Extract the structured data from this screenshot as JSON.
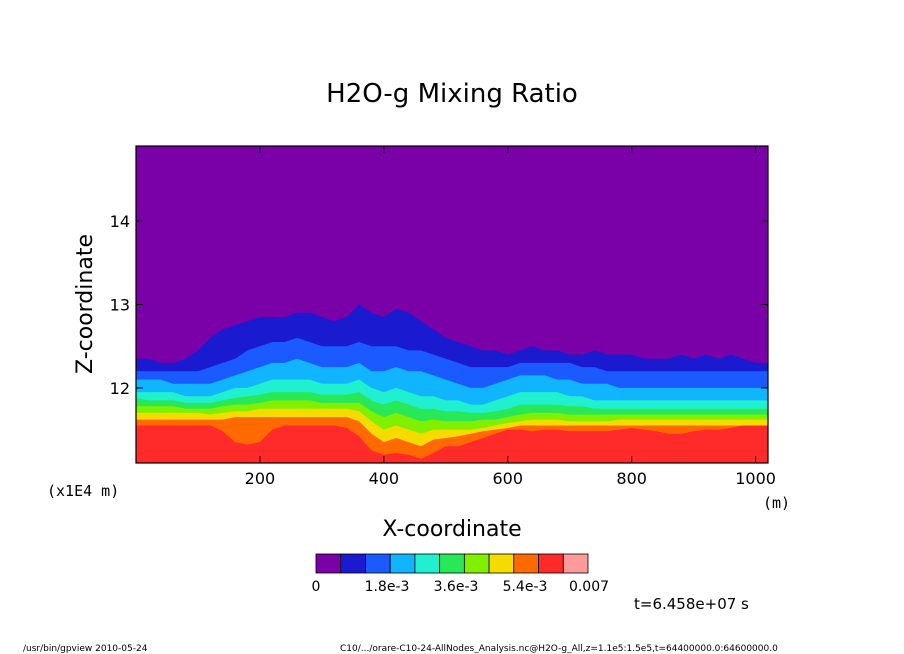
{
  "chart_data": {
    "type": "heatmap",
    "title": "H2O-g Mixing Ratio",
    "xlabel": "X-coordinate",
    "ylabel": "Z-coordinate",
    "x_unit_label": "(m)",
    "y_scale_label": "(x1E4 m)",
    "xlim": [
      0,
      1020
    ],
    "ylim": [
      11.1,
      14.9
    ],
    "x_ticks": [
      200,
      400,
      600,
      800,
      1000
    ],
    "y_ticks": [
      12,
      13,
      14
    ],
    "colorbar": {
      "colors": [
        "#7a00a8",
        "#1a1ad0",
        "#1a5aff",
        "#10b4ff",
        "#20f0d0",
        "#28e858",
        "#80f000",
        "#f4dc00",
        "#ff6a00",
        "#ff2a2a",
        "#ff9a9a"
      ],
      "tick_labels": [
        "0",
        "1.8e-3",
        "3.6e-3",
        "5.4e-3",
        "0.007"
      ]
    },
    "contour_profiles": {
      "x": [
        0,
        20,
        40,
        60,
        80,
        100,
        120,
        140,
        160,
        180,
        200,
        220,
        240,
        260,
        280,
        300,
        320,
        340,
        360,
        380,
        400,
        420,
        440,
        460,
        480,
        500,
        520,
        540,
        560,
        580,
        600,
        620,
        640,
        660,
        680,
        700,
        720,
        740,
        760,
        780,
        800,
        820,
        840,
        860,
        880,
        900,
        920,
        940,
        960,
        980,
        1000,
        1020
      ],
      "level_tops": [
        [
          12.35,
          12.35,
          12.3,
          12.3,
          12.35,
          12.45,
          12.6,
          12.7,
          12.75,
          12.8,
          12.85,
          12.85,
          12.85,
          12.9,
          12.9,
          12.85,
          12.8,
          12.85,
          13.0,
          12.9,
          12.85,
          12.95,
          12.9,
          12.8,
          12.7,
          12.6,
          12.55,
          12.5,
          12.45,
          12.45,
          12.4,
          12.45,
          12.5,
          12.45,
          12.45,
          12.4,
          12.4,
          12.45,
          12.4,
          12.4,
          12.4,
          12.35,
          12.35,
          12.35,
          12.4,
          12.35,
          12.4,
          12.35,
          12.4,
          12.35,
          12.3,
          12.3
        ],
        [
          12.2,
          12.2,
          12.2,
          12.2,
          12.2,
          12.2,
          12.25,
          12.3,
          12.35,
          12.45,
          12.5,
          12.55,
          12.55,
          12.6,
          12.55,
          12.5,
          12.5,
          12.5,
          12.55,
          12.5,
          12.5,
          12.5,
          12.45,
          12.45,
          12.4,
          12.35,
          12.3,
          12.25,
          12.25,
          12.25,
          12.25,
          12.3,
          12.3,
          12.3,
          12.3,
          12.3,
          12.25,
          12.25,
          12.2,
          12.2,
          12.2,
          12.2,
          12.2,
          12.2,
          12.2,
          12.2,
          12.2,
          12.2,
          12.2,
          12.2,
          12.2,
          12.2
        ],
        [
          12.1,
          12.1,
          12.1,
          12.05,
          12.05,
          12.05,
          12.05,
          12.1,
          12.15,
          12.2,
          12.25,
          12.3,
          12.3,
          12.35,
          12.3,
          12.25,
          12.25,
          12.25,
          12.3,
          12.2,
          12.2,
          12.25,
          12.2,
          12.2,
          12.15,
          12.1,
          12.05,
          12.0,
          12.0,
          12.05,
          12.1,
          12.15,
          12.15,
          12.15,
          12.1,
          12.1,
          12.05,
          12.05,
          12.05,
          12.0,
          12.0,
          12.0,
          12.0,
          12.0,
          12.0,
          12.0,
          12.0,
          12.0,
          12.0,
          12.0,
          12.0,
          12.0
        ],
        [
          11.95,
          11.95,
          11.95,
          11.95,
          11.9,
          11.9,
          11.9,
          11.95,
          12.0,
          12.0,
          12.05,
          12.1,
          12.1,
          12.1,
          12.1,
          12.05,
          12.05,
          12.05,
          12.1,
          12.0,
          11.95,
          12.0,
          11.95,
          11.9,
          11.9,
          11.85,
          11.85,
          11.8,
          11.8,
          11.85,
          11.9,
          11.95,
          11.95,
          11.95,
          11.95,
          11.9,
          11.9,
          11.85,
          11.85,
          11.85,
          11.85,
          11.85,
          11.85,
          11.85,
          11.85,
          11.85,
          11.85,
          11.85,
          11.85,
          11.85,
          11.85,
          11.85
        ],
        [
          11.88,
          11.85,
          11.85,
          11.85,
          11.82,
          11.82,
          11.82,
          11.85,
          11.88,
          11.9,
          11.92,
          11.95,
          11.95,
          11.95,
          11.95,
          11.92,
          11.92,
          11.92,
          11.95,
          11.85,
          11.8,
          11.85,
          11.8,
          11.75,
          11.75,
          11.72,
          11.72,
          11.7,
          11.7,
          11.72,
          11.75,
          11.8,
          11.8,
          11.8,
          11.8,
          11.78,
          11.78,
          11.75,
          11.75,
          11.75,
          11.75,
          11.75,
          11.75,
          11.75,
          11.75,
          11.75,
          11.75,
          11.75,
          11.75,
          11.75,
          11.75,
          11.75
        ],
        [
          11.78,
          11.78,
          11.78,
          11.78,
          11.75,
          11.75,
          11.75,
          11.78,
          11.8,
          11.8,
          11.82,
          11.85,
          11.85,
          11.85,
          11.85,
          11.82,
          11.82,
          11.82,
          11.82,
          11.72,
          11.65,
          11.7,
          11.65,
          11.6,
          11.62,
          11.6,
          11.6,
          11.6,
          11.62,
          11.62,
          11.65,
          11.68,
          11.7,
          11.7,
          11.7,
          11.68,
          11.68,
          11.68,
          11.68,
          11.68,
          11.68,
          11.68,
          11.68,
          11.68,
          11.68,
          11.68,
          11.68,
          11.68,
          11.68,
          11.68,
          11.68,
          11.68
        ],
        [
          11.7,
          11.7,
          11.7,
          11.7,
          11.7,
          11.7,
          11.68,
          11.7,
          11.72,
          11.72,
          11.75,
          11.75,
          11.75,
          11.75,
          11.75,
          11.75,
          11.75,
          11.75,
          11.72,
          11.6,
          11.5,
          11.55,
          11.5,
          11.45,
          11.5,
          11.5,
          11.5,
          11.5,
          11.52,
          11.55,
          11.58,
          11.6,
          11.62,
          11.62,
          11.62,
          11.6,
          11.6,
          11.6,
          11.6,
          11.62,
          11.62,
          11.62,
          11.62,
          11.62,
          11.62,
          11.62,
          11.62,
          11.62,
          11.62,
          11.62,
          11.62,
          11.62
        ],
        [
          11.62,
          11.62,
          11.62,
          11.62,
          11.62,
          11.62,
          11.62,
          11.62,
          11.65,
          11.65,
          11.65,
          11.65,
          11.65,
          11.65,
          11.65,
          11.65,
          11.65,
          11.65,
          11.6,
          11.45,
          11.35,
          11.4,
          11.35,
          11.3,
          11.38,
          11.4,
          11.42,
          11.45,
          11.48,
          11.5,
          11.52,
          11.55,
          11.55,
          11.55,
          11.55,
          11.55,
          11.55,
          11.55,
          11.55,
          11.55,
          11.55,
          11.55,
          11.55,
          11.55,
          11.55,
          11.55,
          11.55,
          11.55,
          11.55,
          11.55,
          11.55,
          11.55
        ],
        [
          11.55,
          11.55,
          11.55,
          11.55,
          11.55,
          11.55,
          11.55,
          11.48,
          11.35,
          11.32,
          11.35,
          11.5,
          11.55,
          11.55,
          11.55,
          11.55,
          11.55,
          11.52,
          11.42,
          11.25,
          11.2,
          11.22,
          11.2,
          11.15,
          11.22,
          11.3,
          11.3,
          11.35,
          11.4,
          11.45,
          11.5,
          11.5,
          11.48,
          11.5,
          11.5,
          11.48,
          11.48,
          11.48,
          11.48,
          11.5,
          11.52,
          11.5,
          11.48,
          11.45,
          11.45,
          11.48,
          11.5,
          11.5,
          11.52,
          11.55,
          11.55,
          11.55
        ],
        [
          11.1,
          11.1,
          11.1,
          11.1,
          11.1,
          11.1,
          11.1,
          11.1,
          11.1,
          11.1,
          11.1,
          11.1,
          11.1,
          11.1,
          11.1,
          11.1,
          11.1,
          11.1,
          11.1,
          11.1,
          11.1,
          11.1,
          11.1,
          11.1,
          11.1,
          11.1,
          11.1,
          11.1,
          11.1,
          11.1,
          11.1,
          11.1,
          11.1,
          11.1,
          11.1,
          11.1,
          11.1,
          11.1,
          11.1,
          11.1,
          11.1,
          11.1,
          11.1,
          11.1,
          11.1,
          11.1,
          11.1,
          11.1,
          11.1,
          11.1,
          11.1,
          11.1
        ]
      ]
    }
  },
  "time_label": "t=6.458e+07 s",
  "footer": {
    "left": "/usr/bin/gpview   2010-05-24",
    "right": "C10/.../orare-C10-24-AllNodes_Analysis.nc@H2O-g_All,z=1.1e5:1.5e5,t=64400000.0:64600000.0"
  }
}
